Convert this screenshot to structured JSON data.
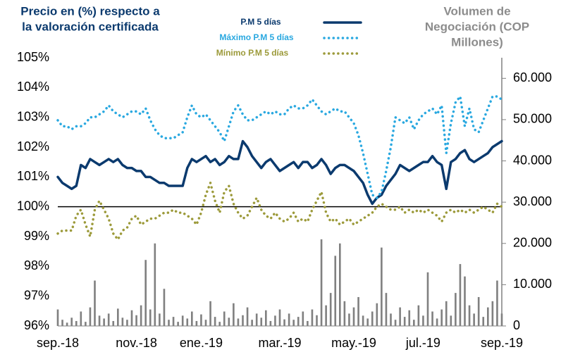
{
  "chart_data": {
    "type": "line",
    "y_label": [
      "Precio en (%) respecto a",
      "la valoración certificada"
    ],
    "y2_label": [
      "Volumen de",
      "Negociación (COP",
      "Millones)"
    ],
    "categories": [
      "sep.-18",
      null,
      null,
      null,
      null,
      null,
      null,
      null,
      null,
      null,
      null,
      null,
      null,
      null,
      null,
      null,
      null,
      "nov.-18",
      null,
      null,
      null,
      null,
      null,
      null,
      null,
      null,
      null,
      null,
      null,
      null,
      null,
      "ene.-19",
      null,
      null,
      null,
      null,
      null,
      null,
      null,
      null,
      null,
      null,
      null,
      null,
      null,
      null,
      null,
      null,
      "mar.-19",
      null,
      null,
      null,
      null,
      null,
      null,
      null,
      null,
      null,
      null,
      null,
      null,
      null,
      null,
      null,
      "may.-19",
      null,
      null,
      null,
      null,
      null,
      null,
      null,
      null,
      null,
      null,
      null,
      null,
      null,
      null,
      "jul.-19",
      null,
      null,
      null,
      null,
      null,
      null,
      null,
      null,
      null,
      null,
      null,
      null,
      null,
      null,
      null,
      null,
      "sep.-19"
    ],
    "series": [
      {
        "name": "P.M 5 días",
        "color": "#0b3a6e",
        "style": "solid",
        "values": [
          101.0,
          100.8,
          100.7,
          100.6,
          100.7,
          101.4,
          101.3,
          101.6,
          101.5,
          101.4,
          101.5,
          101.6,
          101.5,
          101.6,
          101.4,
          101.3,
          101.3,
          101.2,
          101.2,
          101.0,
          101.0,
          100.9,
          100.8,
          100.8,
          100.7,
          100.7,
          100.7,
          100.7,
          101.3,
          101.6,
          101.5,
          101.6,
          101.7,
          101.5,
          101.6,
          101.4,
          101.5,
          101.7,
          101.6,
          101.6,
          102.2,
          102.0,
          101.7,
          101.5,
          101.3,
          101.5,
          101.6,
          101.4,
          101.2,
          101.3,
          101.4,
          101.5,
          101.3,
          101.5,
          101.5,
          101.3,
          101.4,
          101.6,
          101.4,
          101.1,
          101.3,
          101.4,
          101.4,
          101.3,
          101.2,
          101.0,
          100.8,
          100.4,
          100.1,
          100.3,
          100.4,
          100.7,
          100.9,
          101.1,
          101.4,
          101.3,
          101.2,
          101.3,
          101.4,
          101.5,
          101.5,
          101.7,
          101.5,
          101.4,
          100.6,
          101.5,
          101.6,
          101.8,
          101.9,
          101.6,
          101.5,
          101.6,
          101.7,
          101.8,
          102.0,
          102.1,
          102.2
        ]
      },
      {
        "name": "Máximo P.M 5 días",
        "color": "#29a8e0",
        "style": "dotted",
        "values": [
          102.9,
          102.7,
          102.7,
          102.6,
          102.7,
          102.7,
          102.8,
          103.0,
          103.0,
          103.1,
          103.2,
          103.4,
          103.2,
          103.1,
          103.0,
          103.1,
          103.2,
          103.2,
          103.1,
          103.3,
          102.9,
          102.6,
          102.4,
          102.3,
          102.3,
          102.3,
          102.4,
          102.5,
          103.0,
          103.4,
          103.1,
          103.0,
          103.1,
          102.9,
          102.7,
          102.5,
          102.2,
          102.7,
          103.2,
          103.4,
          103.1,
          102.9,
          102.9,
          103.0,
          103.1,
          103.2,
          103.1,
          103.2,
          103.1,
          103.1,
          103.3,
          103.4,
          103.3,
          103.3,
          103.4,
          103.6,
          103.4,
          103.2,
          103.1,
          103.2,
          103.3,
          103.2,
          103.2,
          103.0,
          102.8,
          102.4,
          101.8,
          101.1,
          100.4,
          100.3,
          100.5,
          101.2,
          102.0,
          103.0,
          102.9,
          102.8,
          103.0,
          102.6,
          102.9,
          103.1,
          103.2,
          103.3,
          103.1,
          103.4,
          101.8,
          102.8,
          103.5,
          103.7,
          102.7,
          103.3,
          102.6,
          102.5,
          102.9,
          103.3,
          103.7,
          103.7,
          103.6
        ]
      },
      {
        "name": "Mínimo P.M 5 días",
        "color": "#9c9a3a",
        "style": "dotted",
        "values": [
          99.1,
          99.2,
          99.2,
          99.2,
          99.7,
          99.9,
          99.4,
          99.0,
          99.9,
          100.2,
          99.9,
          99.6,
          99.1,
          98.9,
          99.2,
          99.3,
          99.6,
          99.7,
          99.4,
          99.5,
          99.6,
          99.6,
          99.7,
          99.8,
          99.8,
          99.9,
          99.8,
          99.8,
          99.7,
          99.6,
          99.4,
          99.8,
          100.4,
          100.8,
          100.2,
          99.8,
          100.5,
          100.7,
          100.1,
          99.8,
          99.6,
          99.7,
          100.0,
          100.3,
          99.9,
          99.7,
          99.6,
          99.8,
          99.6,
          99.5,
          99.6,
          99.8,
          99.5,
          99.6,
          99.5,
          99.9,
          100.2,
          100.5,
          99.8,
          99.5,
          99.6,
          99.4,
          99.5,
          99.6,
          99.4,
          99.5,
          99.6,
          99.7,
          99.8,
          100.0,
          100.1,
          100.0,
          99.9,
          99.9,
          100.0,
          99.8,
          99.9,
          99.8,
          99.9,
          99.8,
          99.9,
          99.8,
          99.7,
          99.5,
          99.8,
          99.9,
          99.8,
          99.9,
          99.8,
          99.9,
          99.8,
          99.9,
          100.0,
          99.9,
          99.8,
          100.1,
          100.0
        ]
      },
      {
        "type": "bar",
        "axis": "y2",
        "color": "#808080",
        "values": [
          4000,
          1500,
          800,
          2000,
          1200,
          3500,
          1000,
          4500,
          11000,
          2500,
          1800,
          3000,
          1200,
          4200,
          2000,
          1500,
          3800,
          2600,
          5000,
          16000,
          4000,
          20000,
          3000,
          9000,
          1500,
          2200,
          1000,
          2500,
          1800,
          3500,
          1200,
          2800,
          1500,
          6000,
          2200,
          1000,
          3500,
          2000,
          5500,
          1800,
          2600,
          4500,
          1500,
          3000,
          2000,
          3800,
          1200,
          2500,
          4000,
          1600,
          3000,
          1500,
          2200,
          3500,
          1200,
          4000,
          2600,
          21000,
          5000,
          8000,
          17000,
          20000,
          6000,
          3000,
          4500,
          7000,
          2500,
          1800,
          3500,
          5500,
          19000,
          8000,
          3000,
          1500,
          4500,
          2200,
          3800,
          1500,
          5000,
          2500,
          13000,
          3500,
          1800,
          4000,
          6000,
          2500,
          8000,
          15000,
          12000,
          5000,
          3000,
          7000,
          2200,
          4500,
          6000,
          11000,
          3000
        ]
      }
    ],
    "reference_line": 100,
    "ylim": [
      96,
      105
    ],
    "yticks": [
      {
        "value": 96,
        "label": "96%"
      },
      {
        "value": 97,
        "label": "97%"
      },
      {
        "value": 98,
        "label": "98%"
      },
      {
        "value": 99,
        "label": "99%"
      },
      {
        "value": 100,
        "label": "100%"
      },
      {
        "value": 101,
        "label": "101%"
      },
      {
        "value": 102,
        "label": "102%"
      },
      {
        "value": 103,
        "label": "103%"
      },
      {
        "value": 104,
        "label": "104%"
      },
      {
        "value": 105,
        "label": "105%"
      }
    ],
    "y2lim": [
      0,
      65000
    ],
    "y2ticks": [
      0,
      {
        "value": 10000,
        "label": "10.000"
      },
      {
        "value": 20000,
        "label": "20.000"
      },
      {
        "value": 30000,
        "label": "30.000"
      },
      {
        "value": 40000,
        "label": "40.000"
      },
      {
        "value": 50000,
        "label": "50.000"
      },
      {
        "value": 60000,
        "label": "60.000"
      }
    ],
    "grid": false
  }
}
